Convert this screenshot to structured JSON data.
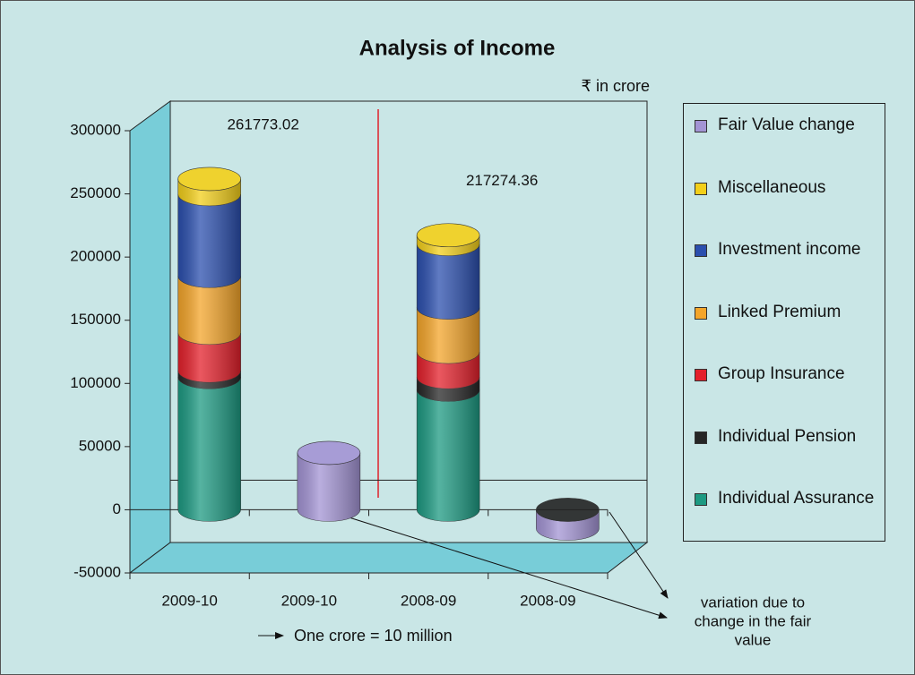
{
  "chart_data": {
    "type": "bar",
    "stacked": true,
    "title": "Analysis of Income",
    "unit_label": "₹ in crore",
    "categories": [
      "2009-10",
      "2009-10",
      "2008-09",
      "2008-09"
    ],
    "series": [
      {
        "name": "Individual Assurance",
        "color": "#1d9a82",
        "values": [
          105000,
          null,
          95000,
          null
        ]
      },
      {
        "name": "Individual Pension",
        "color": "#262626",
        "values": [
          5000,
          null,
          10000,
          null
        ]
      },
      {
        "name": "Group Insurance",
        "color": "#e4202b",
        "values": [
          30000,
          null,
          20000,
          null
        ]
      },
      {
        "name": "Linked Premium",
        "color": "#f4a52a",
        "values": [
          45000,
          null,
          35000,
          null
        ]
      },
      {
        "name": "Investment income",
        "color": "#2b4fae",
        "values": [
          64773,
          null,
          50274,
          null
        ]
      },
      {
        "name": "Miscellaneous",
        "color": "#f3cf1a",
        "values": [
          12000,
          null,
          7000,
          null
        ]
      },
      {
        "name": "Fair Value change",
        "color": "#a394d4",
        "values": [
          null,
          45000,
          null,
          -15000
        ]
      }
    ],
    "annotations": [
      "261773.02",
      "217274.36"
    ],
    "total_positions": [
      0,
      2
    ],
    "footnote": "One crore = 10 million",
    "note": [
      "variation due to",
      "change in the fair",
      "value"
    ],
    "ylim": [
      -50000,
      300000
    ],
    "yticks": [
      -50000,
      0,
      50000,
      100000,
      150000,
      200000,
      250000,
      300000
    ]
  }
}
